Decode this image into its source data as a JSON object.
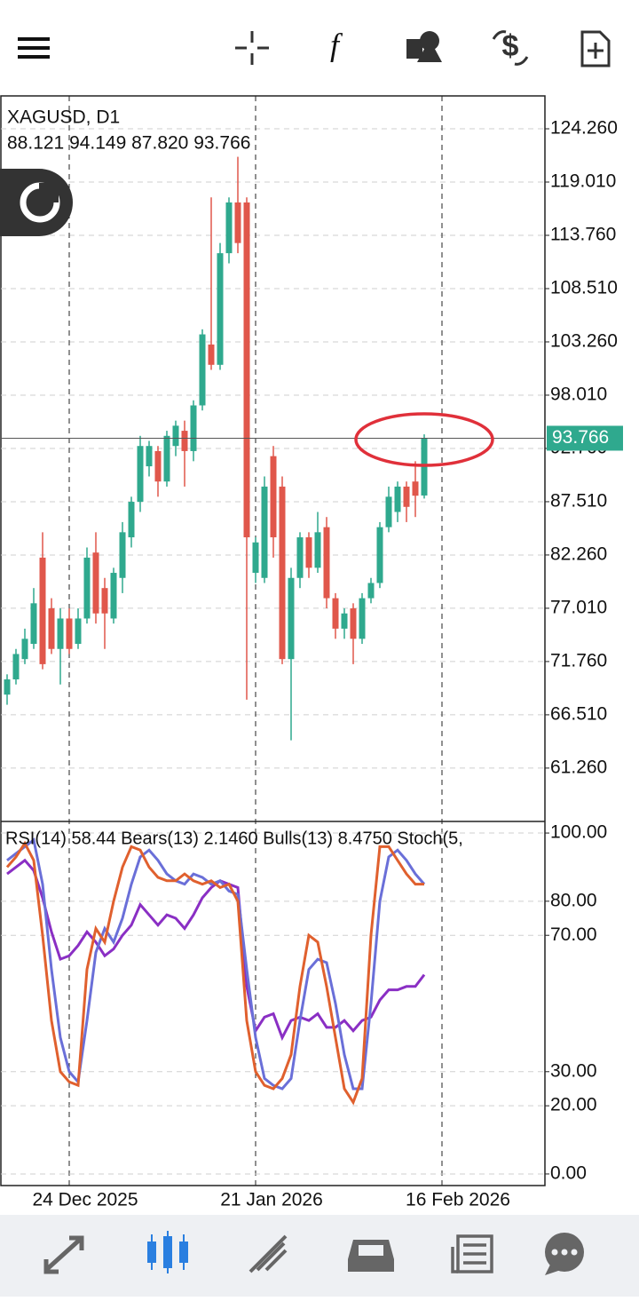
{
  "chart_data": [
    {
      "type": "candlestick",
      "title": "XAGUSD, D1",
      "subtitle": "88.121 94.149 87.820 93.766",
      "categories": [
        null,
        null,
        null,
        null,
        null,
        null,
        null,
        "24 Dec 2025",
        null,
        null,
        null,
        null,
        null,
        null,
        null,
        null,
        null,
        null,
        null,
        null,
        null,
        null,
        null,
        null,
        null,
        null,
        null,
        null,
        "21 Jan 2026",
        null,
        null,
        null,
        null,
        null,
        null,
        null,
        null,
        null,
        null,
        null,
        null,
        null,
        null,
        null,
        null,
        null,
        null,
        null,
        null,
        "16 Feb 2026"
      ],
      "open": [
        68.5,
        70,
        72,
        73.5,
        82,
        77,
        73,
        76,
        73.5,
        76,
        82.5,
        79,
        76,
        80,
        84,
        87.5,
        91,
        92.5,
        89.5,
        93,
        94.5,
        92.5,
        97,
        103,
        101,
        112,
        117,
        117,
        80.5,
        80,
        92,
        89,
        72,
        80,
        84,
        81,
        85,
        78,
        75,
        77,
        74,
        78,
        79.5,
        85,
        86.5,
        89,
        89.5,
        88.121,
        null,
        null
      ],
      "high": [
        70.5,
        73,
        75,
        79,
        84.5,
        78,
        77,
        77,
        77,
        83,
        84.5,
        80,
        81,
        85.5,
        88,
        94,
        93.5,
        93,
        94.5,
        95.5,
        95.5,
        97.5,
        104.5,
        117.5,
        113,
        117.5,
        121.5,
        117.5,
        84,
        90,
        93,
        90,
        81,
        84.5,
        84.5,
        86.5,
        86,
        78.5,
        77,
        77.5,
        78.5,
        80,
        85.5,
        89,
        89.5,
        89.5,
        91.5,
        94.149,
        null,
        null
      ],
      "low": [
        67.5,
        69.5,
        71.5,
        73,
        71,
        72.5,
        69.5,
        72.5,
        73,
        75.5,
        75.5,
        73,
        75.5,
        78.5,
        83,
        86.5,
        90,
        88,
        89,
        92,
        89,
        91.5,
        96.5,
        100.5,
        100.5,
        111,
        112,
        68,
        79.5,
        79.5,
        82,
        71.5,
        64,
        79,
        80,
        80.5,
        77,
        74,
        74,
        71.5,
        73.5,
        77.5,
        79,
        84.5,
        85.5,
        85.5,
        86,
        87.82,
        null,
        null
      ],
      "close": [
        70,
        72.5,
        74,
        77.5,
        71.5,
        73,
        76,
        73,
        76,
        82,
        76.5,
        76.5,
        80.5,
        84.5,
        87.5,
        93,
        93,
        89.5,
        94,
        95,
        92.5,
        97,
        104,
        101,
        112,
        117,
        113,
        84,
        83.5,
        89,
        84,
        72,
        80,
        84,
        81,
        84.5,
        78,
        75,
        76.5,
        74,
        78,
        79.5,
        85,
        88,
        89,
        87,
        88.1,
        93.766,
        null,
        null
      ],
      "up_color": "#2fa98e",
      "down_color": "#e0574b",
      "last_price": 93.766,
      "ylim": [
        56.0,
        127.5
      ],
      "yticks": [
        {
          "value": 124.26,
          "label": "124.260"
        },
        {
          "value": 119.01,
          "label": "119.010"
        },
        {
          "value": 113.76,
          "label": "113.760"
        },
        {
          "value": 108.51,
          "label": "108.510"
        },
        {
          "value": 103.26,
          "label": "103.260"
        },
        {
          "value": 98.01,
          "label": "98.010"
        },
        {
          "value": 92.76,
          "label": "92.760"
        },
        {
          "value": 87.51,
          "label": "87.510"
        },
        {
          "value": 82.26,
          "label": "82.260"
        },
        {
          "value": 77.01,
          "label": "77.010"
        },
        {
          "value": 71.76,
          "label": "71.760"
        },
        {
          "value": 66.51,
          "label": "66.510"
        },
        {
          "value": 61.26,
          "label": "61.260"
        }
      ],
      "grid": true
    },
    {
      "type": "line",
      "title": "RSI(14) 58.44 Bears(13) 2.1460 Bulls(13) 8.4750 Stoch(5,",
      "series": [
        {
          "color": "#8a2fc4",
          "values": [
            88,
            90,
            92,
            89,
            81,
            71,
            63,
            64,
            67,
            71,
            68,
            64,
            66,
            70,
            73,
            79,
            76,
            73,
            76,
            75,
            72,
            76,
            81,
            84,
            86,
            85,
            84,
            55,
            42,
            46,
            47,
            40,
            45,
            46,
            45,
            47,
            43,
            43,
            45,
            42,
            45,
            46,
            51,
            54,
            54,
            55,
            55,
            58.44,
            null,
            null
          ]
        },
        {
          "color": "#6a6fd8",
          "values": [
            92,
            94,
            96,
            98,
            85,
            60,
            40,
            30,
            27,
            45,
            65,
            72,
            68,
            75,
            85,
            93,
            95,
            92,
            88,
            86,
            85,
            88,
            87,
            85,
            86,
            83,
            82,
            60,
            40,
            28,
            26,
            25,
            28,
            45,
            60,
            63,
            62,
            50,
            35,
            25,
            25,
            50,
            80,
            93,
            95,
            92,
            88,
            85,
            null,
            null
          ]
        },
        {
          "color": "#e0602e",
          "values": [
            90,
            93,
            97,
            92,
            70,
            45,
            30,
            27,
            26,
            60,
            72,
            68,
            80,
            90,
            96,
            95,
            90,
            87,
            86,
            86,
            88,
            86,
            85,
            86,
            84,
            85,
            80,
            45,
            30,
            26,
            25,
            28,
            35,
            55,
            70,
            68,
            55,
            40,
            25,
            21,
            28,
            70,
            96,
            96,
            92,
            88,
            85,
            85,
            null,
            null
          ]
        }
      ],
      "ylim": [
        -3.4,
        103.4
      ],
      "yticks": [
        {
          "value": 100,
          "label": "100.00"
        },
        {
          "value": 80,
          "label": "80.00"
        },
        {
          "value": 70,
          "label": "70.00"
        },
        {
          "value": 30,
          "label": "30.00"
        },
        {
          "value": 20,
          "label": "20.00"
        },
        {
          "value": 0,
          "label": "0.00"
        }
      ],
      "grid": true
    }
  ]
}
